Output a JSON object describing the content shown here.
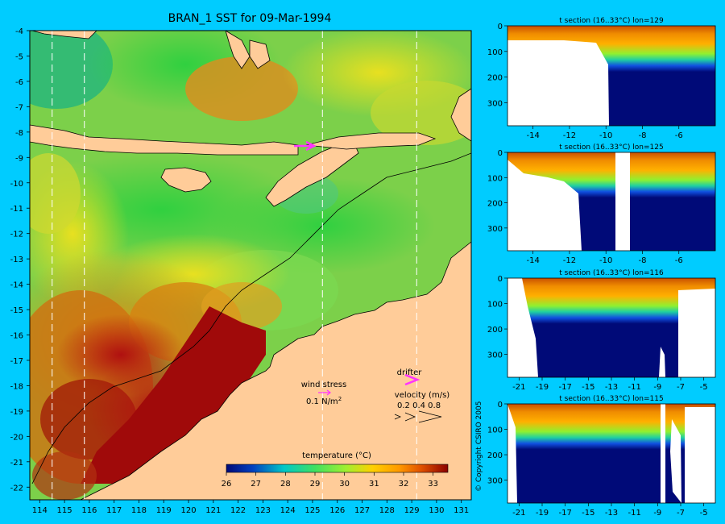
{
  "colors": {
    "background": "#00ccff",
    "land": "#ffcc99",
    "deep": "#000a78",
    "vector": "#ff33ff",
    "scale": [
      "#000a78",
      "#0040c0",
      "#00c8c8",
      "#40e060",
      "#a0f030",
      "#ffd000",
      "#ff9900",
      "#e05000",
      "#8b0000"
    ]
  },
  "chart_data": [
    {
      "type": "heatmap",
      "title": "BRAN_1 SST for 09-Mar-1994",
      "x_ticks": [
        114,
        115,
        116,
        117,
        118,
        119,
        120,
        121,
        122,
        123,
        124,
        125,
        126,
        127,
        128,
        129,
        130,
        131
      ],
      "y_ticks": [
        -4,
        -5,
        -6,
        -7,
        -8,
        -9,
        -10,
        -11,
        -12,
        -13,
        -14,
        -15,
        -16,
        -17,
        -18,
        -19,
        -20,
        -21,
        -22
      ],
      "xlim": [
        113.6,
        131.4
      ],
      "ylim": [
        -22.5,
        -4
      ],
      "section_lons": [
        114.5,
        115.8,
        125.4,
        129.2
      ],
      "legend": {
        "wind_label": "wind stress",
        "wind_value": "0.1 N/m",
        "wind_superscript": "2",
        "drifter_label": "drifter",
        "velocity_label": "velocity (m/s)",
        "velocity_values": "0.2 0.4 0.8"
      },
      "colorbar": {
        "title": "temperature (°C)",
        "ticks": [
          26,
          27,
          28,
          29,
          30,
          31,
          32,
          33
        ],
        "range": [
          26,
          33.5
        ]
      }
    },
    {
      "type": "heatmap",
      "title": "t section (16..33°C) lon=129",
      "x_ticks": [
        -14,
        -12,
        -10,
        -8,
        -6
      ],
      "y_ticks": [
        0,
        100,
        200,
        300
      ],
      "xlim": [
        -15.4,
        -4
      ],
      "ylim": [
        0,
        390
      ]
    },
    {
      "type": "heatmap",
      "title": "t section (16..33°C) lon=125",
      "x_ticks": [
        -14,
        -12,
        -10,
        -8,
        -6
      ],
      "y_ticks": [
        0,
        100,
        200,
        300
      ],
      "xlim": [
        -15.4,
        -4
      ],
      "ylim": [
        0,
        390
      ]
    },
    {
      "type": "heatmap",
      "title": "t section (16..33°C) lon=116",
      "x_ticks": [
        -21,
        -19,
        -17,
        -15,
        -13,
        -11,
        -9,
        -7,
        -5
      ],
      "y_ticks": [
        0,
        100,
        200,
        300
      ],
      "xlim": [
        -22,
        -4
      ],
      "ylim": [
        0,
        390
      ]
    },
    {
      "type": "heatmap",
      "title": "t section (16..33°C) lon=115",
      "x_ticks": [
        -21,
        -19,
        -17,
        -15,
        -13,
        -11,
        -9,
        -7,
        -5
      ],
      "y_ticks": [
        0,
        100,
        200,
        300
      ],
      "xlim": [
        -22,
        -4
      ],
      "ylim": [
        0,
        390
      ]
    }
  ],
  "copyright": "© Copyright CSIRO 2005"
}
